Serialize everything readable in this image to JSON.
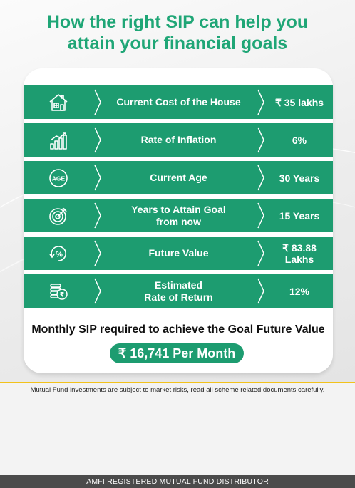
{
  "headline": {
    "line1": "How the right SIP can help you",
    "line2": "attain your financial goals"
  },
  "rows": [
    {
      "icon": "house-icon",
      "label": "Current Cost of the House",
      "value": "₹ 35 lakhs"
    },
    {
      "icon": "inflation-chart-icon",
      "label": "Rate of Inflation",
      "value": "6%"
    },
    {
      "icon": "age-icon",
      "label": "Current Age",
      "value": "30 Years"
    },
    {
      "icon": "target-icon",
      "label_line1": "Years to Attain Goal",
      "label_line2": "from now",
      "value": "15 Years"
    },
    {
      "icon": "percent-cycle-icon",
      "label": "Future Value",
      "value_line1": "₹ 83.88",
      "value_line2": "Lakhs"
    },
    {
      "icon": "rupee-coins-icon",
      "label_line1": "Estimated",
      "label_line2": "Rate of Return",
      "value": "12%"
    }
  ],
  "sip": {
    "label": "Monthly SIP required to achieve the Goal Future Value",
    "amount": "₹ 16,741 Per Month"
  },
  "disclaimer": "Mutual Fund investments are subject to market risks, read all scheme related documents carefully.",
  "footer": "AMFI REGISTERED MUTUAL FUND DISTRIBUTOR",
  "colors": {
    "primary_green": "#1d9c70",
    "headline_green": "#1fa676",
    "accent_yellow": "#f2c21b",
    "footer_bg": "#4b4b4b"
  }
}
